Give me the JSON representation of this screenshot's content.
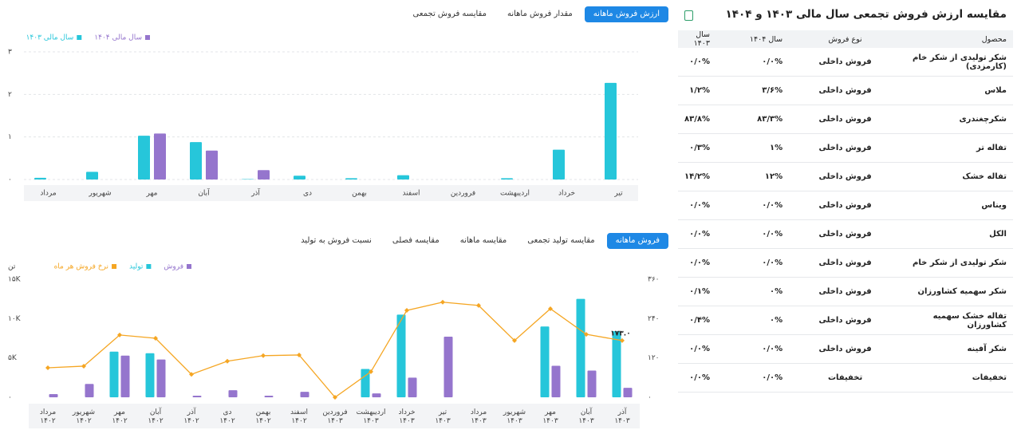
{
  "tabs_top": {
    "items": [
      "ارزش فروش ماهانه",
      "مقدار فروش ماهانه",
      "مقایسه فروش تجمعی"
    ],
    "active": 0
  },
  "tabs_bottom": {
    "items": [
      "فروش ماهانه",
      "مقایسه تولید تجمعی",
      "مقایسه ماهانه",
      "مقایسه فصلی",
      "نسبت فروش به تولید"
    ],
    "active": 0
  },
  "chart_data": [
    {
      "type": "bar",
      "categories": [
        "مرداد",
        "شهریور",
        "مهر",
        "آبان",
        "آذر",
        "دی",
        "بهمن",
        "اسفند",
        "فروردین",
        "اردیبهشت",
        "خرداد",
        "تیر"
      ],
      "series": [
        {
          "name": "سال مالی ۱۴۰۴",
          "color": "#9575cd",
          "values": [
            null,
            null,
            1.08,
            0.68,
            0.22,
            null,
            null,
            null,
            null,
            null,
            null,
            null
          ]
        },
        {
          "name": "سال مالی ۱۴۰۳",
          "color": "#26c6da",
          "values": [
            0.04,
            0.18,
            1.03,
            0.88,
            0.01,
            0.09,
            0.03,
            0.1,
            null,
            0.03,
            0.7,
            2.27
          ]
        }
      ],
      "ylim": [
        0,
        3
      ],
      "yticks": [
        {
          "value": 0,
          "label": "۰"
        },
        {
          "value": 1,
          "label": "۱"
        },
        {
          "value": 2,
          "label": "۲"
        },
        {
          "value": 3,
          "label": "۳"
        }
      ],
      "grid": true
    },
    {
      "type": "combo",
      "y_label": "تن",
      "categories": [
        "مرداد\n۱۴۰۲",
        "شهریور\n۱۴۰۲",
        "مهر\n۱۴۰۲",
        "آبان\n۱۴۰۲",
        "آذر\n۱۴۰۲",
        "دی\n۱۴۰۲",
        "بهمن\n۱۴۰۲",
        "اسفند\n۱۴۰۲",
        "فروردین\n۱۴۰۳",
        "اردیبهشت\n۱۴۰۳",
        "خرداد\n۱۴۰۳",
        "تیر\n۱۴۰۳",
        "مرداد\n۱۴۰۳",
        "شهریور\n۱۴۰۳",
        "مهر\n۱۴۰۳",
        "آبان\n۱۴۰۳",
        "آذر\n۱۴۰۳"
      ],
      "series": [
        {
          "name": "فروش",
          "color": "#9575cd",
          "type": "bar",
          "values": [
            400,
            1700,
            5300,
            4800,
            200,
            900,
            200,
            700,
            null,
            500,
            2500,
            7700,
            null,
            null,
            4000,
            3400,
            1200
          ]
        },
        {
          "name": "تولید",
          "color": "#26c6da",
          "type": "bar",
          "values": [
            null,
            null,
            5800,
            5600,
            null,
            null,
            null,
            null,
            null,
            3600,
            10500,
            null,
            null,
            null,
            9000,
            12500,
            8400
          ]
        },
        {
          "name": "نرخ فروش هر ماه",
          "color": "#f5a623",
          "type": "line",
          "axis": "y2",
          "values": [
            90,
            95,
            190,
            180,
            70,
            110,
            127,
            129,
            0,
            78,
            265,
            290,
            280,
            173,
            270,
            192,
            173
          ],
          "value_labels": [
            null,
            null,
            null,
            null,
            null,
            null,
            null,
            null,
            null,
            null,
            null,
            null,
            null,
            null,
            null,
            null,
            "۱۷۳.۰"
          ]
        }
      ],
      "ylim": [
        0,
        15000
      ],
      "yticks": [
        {
          "value": 0,
          "label": "۰"
        },
        {
          "value": 5000,
          "label": "۵K"
        },
        {
          "value": 10000,
          "label": "۱۰K"
        },
        {
          "value": 15000,
          "label": "۱۵K"
        }
      ],
      "y2lim": [
        0,
        360
      ],
      "y2ticks": [
        {
          "value": 0,
          "label": "۰"
        },
        {
          "value": 120,
          "label": "۱۲۰"
        },
        {
          "value": 240,
          "label": "۲۴۰"
        },
        {
          "value": 360,
          "label": "۳۶۰"
        }
      ],
      "grid": false
    }
  ],
  "table": {
    "title": "مقایسه ارزش فروش تجمعی سال مالی ۱۴۰۳ و ۱۴۰۴",
    "columns": [
      "محصول",
      "نوع فروش",
      "سال ۱۴۰۴",
      "سال ۱۴۰۳"
    ],
    "rows": [
      [
        "شکر تولیدی از شکر خام (کارمزدی)",
        "فروش داخلی",
        "۰/۰%",
        "۰/۰%"
      ],
      [
        "ملاس",
        "فروش داخلی",
        "۳/۶%",
        "۱/۲%"
      ],
      [
        "شکرچغندری",
        "فروش داخلی",
        "۸۳/۳%",
        "۸۳/۸%"
      ],
      [
        "تفاله تر",
        "فروش داخلی",
        "۱%",
        "۰/۳%"
      ],
      [
        "تفاله خشک",
        "فروش داخلی",
        "۱۲%",
        "۱۴/۲%"
      ],
      [
        "ویناس",
        "فروش داخلی",
        "۰/۰%",
        "۰/۰%"
      ],
      [
        "الکل",
        "فروش داخلی",
        "۰/۰%",
        "۰/۰%"
      ],
      [
        "شکر تولیدی از شکر خام",
        "فروش داخلی",
        "۰/۰%",
        "۰/۰%"
      ],
      [
        "شکر سهمیه کشاورزان",
        "فروش داخلی",
        "۰%",
        "۰/۱%"
      ],
      [
        "تفاله خشک سهمیه کشاورزان",
        "فروش داخلی",
        "۰%",
        "۰/۴%"
      ],
      [
        "شکر آفینه",
        "فروش داخلی",
        "۰/۰%",
        "۰/۰%"
      ],
      [
        "تخفیفات",
        "تخفیفات",
        "۰/۰%",
        "۰/۰%"
      ]
    ]
  }
}
